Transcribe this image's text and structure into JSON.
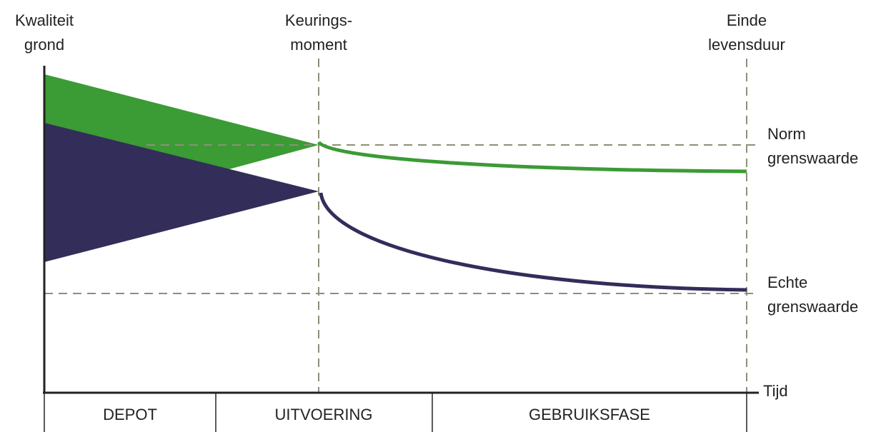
{
  "labels": {
    "y_axis": [
      "Kwaliteit",
      "grond"
    ],
    "inspection": [
      "Keurings-",
      "moment"
    ],
    "end_of_life": [
      "Einde",
      "levensduur"
    ],
    "norm_limit": [
      "Norm",
      "grenswaarde"
    ],
    "real_limit": [
      "Echte",
      "grenswaarde"
    ],
    "x_axis": "Tijd"
  },
  "phases": [
    "DEPOT",
    "UITVOERING",
    "GEBRUIKSFASE"
  ]
}
